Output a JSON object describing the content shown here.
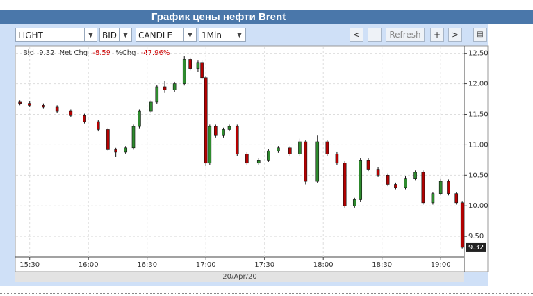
{
  "page_title": "График цены нефти Brent",
  "toolbar": {
    "selects": [
      "LIGHT",
      "BID",
      "CANDLE",
      "1Min"
    ],
    "buttons": [
      "<",
      "-",
      "Refresh",
      "+",
      ">"
    ]
  },
  "chart_data": {
    "type": "candlestick",
    "info": [
      "Bid",
      "9.32",
      "Net Chg",
      "-8.59",
      "%Chg",
      "-47.96%"
    ],
    "date_label": "20/Apr/20",
    "last_price": 9.32,
    "up_color": "#2e8b2e",
    "down_color": "#b40000",
    "x": [
      925,
      930,
      937,
      944,
      951,
      958,
      965,
      970,
      974,
      979,
      983,
      986,
      992,
      995,
      999,
      1004,
      1009,
      1012,
      1016,
      1018,
      1020,
      1022,
      1025,
      1029,
      1032,
      1036,
      1041,
      1047,
      1052,
      1057,
      1063,
      1068,
      1071,
      1077,
      1082,
      1087,
      1091,
      1096,
      1099,
      1103,
      1108,
      1113,
      1117,
      1122,
      1127,
      1131,
      1136,
      1140,
      1144,
      1148,
      1151
    ],
    "open": [
      11.7,
      11.68,
      11.65,
      11.62,
      11.55,
      11.48,
      11.38,
      11.25,
      10.92,
      10.88,
      10.95,
      11.3,
      11.55,
      11.7,
      11.95,
      11.9,
      12.0,
      12.4,
      12.25,
      12.35,
      12.1,
      10.7,
      11.3,
      11.15,
      11.25,
      11.3,
      10.85,
      10.7,
      10.75,
      10.9,
      10.95,
      10.85,
      11.05,
      10.4,
      11.05,
      10.85,
      10.7,
      10.0,
      10.1,
      10.75,
      10.6,
      10.5,
      10.35,
      10.3,
      10.45,
      10.55,
      10.05,
      10.2,
      10.4,
      10.2,
      10.05
    ],
    "high": [
      11.73,
      11.71,
      11.68,
      11.65,
      11.58,
      11.51,
      11.41,
      11.28,
      10.95,
      10.98,
      11.33,
      11.58,
      11.73,
      11.98,
      12.05,
      12.03,
      12.45,
      12.43,
      12.38,
      12.38,
      12.13,
      11.33,
      11.33,
      11.28,
      11.33,
      11.33,
      10.88,
      10.78,
      10.93,
      10.98,
      10.98,
      11.1,
      11.08,
      11.15,
      11.08,
      10.88,
      10.73,
      10.13,
      10.78,
      10.78,
      10.63,
      10.53,
      10.38,
      10.48,
      10.58,
      10.58,
      10.23,
      10.45,
      10.43,
      10.23,
      10.08
    ],
    "low": [
      11.65,
      11.62,
      11.59,
      11.52,
      11.45,
      11.35,
      11.22,
      10.89,
      10.8,
      10.85,
      10.92,
      11.27,
      11.52,
      11.67,
      11.85,
      11.87,
      11.97,
      12.22,
      12.2,
      12.07,
      10.65,
      10.67,
      11.12,
      11.12,
      11.22,
      10.82,
      10.67,
      10.67,
      10.72,
      10.87,
      10.82,
      10.82,
      10.35,
      10.37,
      10.82,
      10.67,
      9.97,
      9.97,
      10.07,
      10.57,
      10.47,
      10.32,
      10.27,
      10.27,
      10.42,
      10.02,
      10.02,
      10.17,
      10.17,
      10.02,
      9.3
    ],
    "close": [
      11.68,
      11.65,
      11.62,
      11.55,
      11.48,
      11.38,
      11.25,
      10.92,
      10.88,
      10.95,
      11.3,
      11.55,
      11.7,
      11.95,
      11.9,
      12.0,
      12.4,
      12.25,
      12.35,
      12.1,
      10.7,
      11.3,
      11.15,
      11.25,
      11.3,
      10.85,
      10.7,
      10.75,
      10.9,
      10.95,
      10.85,
      11.05,
      10.4,
      11.05,
      10.85,
      10.7,
      10.0,
      10.1,
      10.75,
      10.6,
      10.5,
      10.35,
      10.3,
      10.45,
      10.55,
      10.05,
      10.2,
      10.4,
      10.2,
      10.05,
      9.32
    ],
    "xlim": [
      923,
      1152
    ],
    "xticks": [
      {
        "value": 930,
        "label": "15:30"
      },
      {
        "value": 960,
        "label": "16:00"
      },
      {
        "value": 990,
        "label": "16:30"
      },
      {
        "value": 1020,
        "label": "17:00"
      },
      {
        "value": 1050,
        "label": "17:30"
      },
      {
        "value": 1080,
        "label": "18:00"
      },
      {
        "value": 1110,
        "label": "18:30"
      },
      {
        "value": 1140,
        "label": "19:00"
      }
    ],
    "ylim": [
      9.16,
      12.61
    ],
    "yticks": [
      {
        "value": 9.5,
        "label": "9.50"
      },
      {
        "value": 10,
        "label": "10.00"
      },
      {
        "value": 10.5,
        "label": "10.50"
      },
      {
        "value": 11,
        "label": "11.00"
      },
      {
        "value": 11.5,
        "label": "11.50"
      },
      {
        "value": 12,
        "label": "12.00"
      },
      {
        "value": 12.5,
        "label": "12.50"
      }
    ],
    "grid": true
  }
}
